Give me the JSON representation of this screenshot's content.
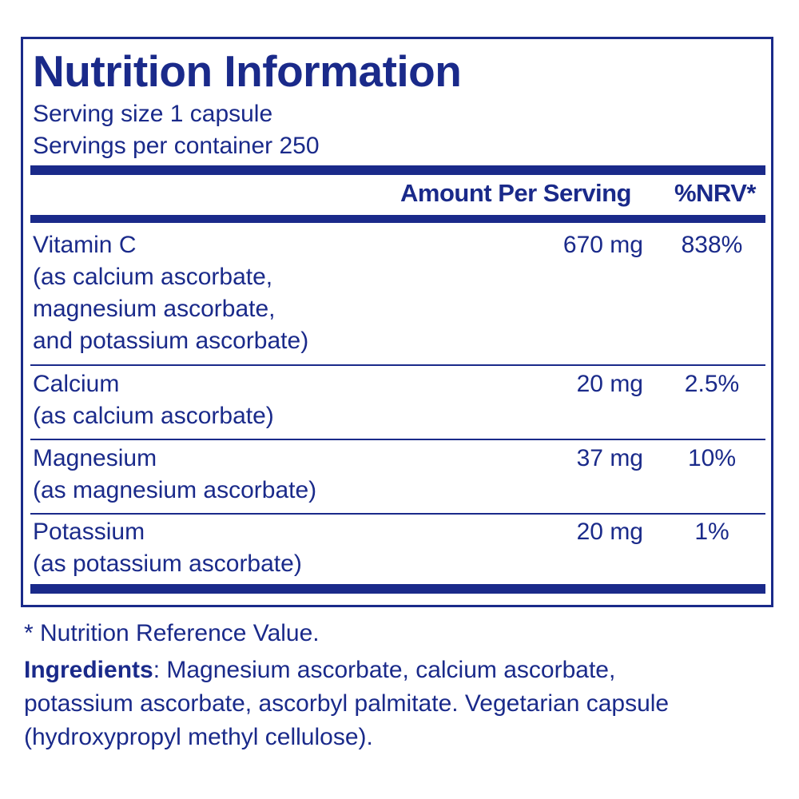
{
  "title": "Nutrition Information",
  "serving_size": "Serving size  1 capsule",
  "servings_per_container": "Servings per container  250",
  "header": {
    "amount": "Amount Per Serving",
    "nrv": "%NRV*"
  },
  "rows": [
    {
      "name": "Vitamin C",
      "sub": [
        "(as calcium ascorbate,",
        "magnesium ascorbate,",
        "and potassium ascorbate)"
      ],
      "amount": "670 mg",
      "nrv": "838%"
    },
    {
      "name": "Calcium",
      "sub": [
        "(as calcium ascorbate)"
      ],
      "amount": "20 mg",
      "nrv": "2.5%"
    },
    {
      "name": "Magnesium",
      "sub": [
        "(as magnesium ascorbate)"
      ],
      "amount": "37 mg",
      "nrv": "10%"
    },
    {
      "name": "Potassium",
      "sub": [
        "(as potassium ascorbate)"
      ],
      "amount": "20 mg",
      "nrv": "1%"
    }
  ],
  "footnote": "* Nutrition Reference Value.",
  "ingredients": {
    "label": "Ingredients",
    "line1": ": Magnesium ascorbate, calcium ascorbate,",
    "line2": "potassium ascorbate, ascorbyl palmitate. Vegetarian capsule",
    "line3": "(hydroxypropyl methyl cellulose)."
  },
  "colors": {
    "accent": "#1a2a8a"
  }
}
